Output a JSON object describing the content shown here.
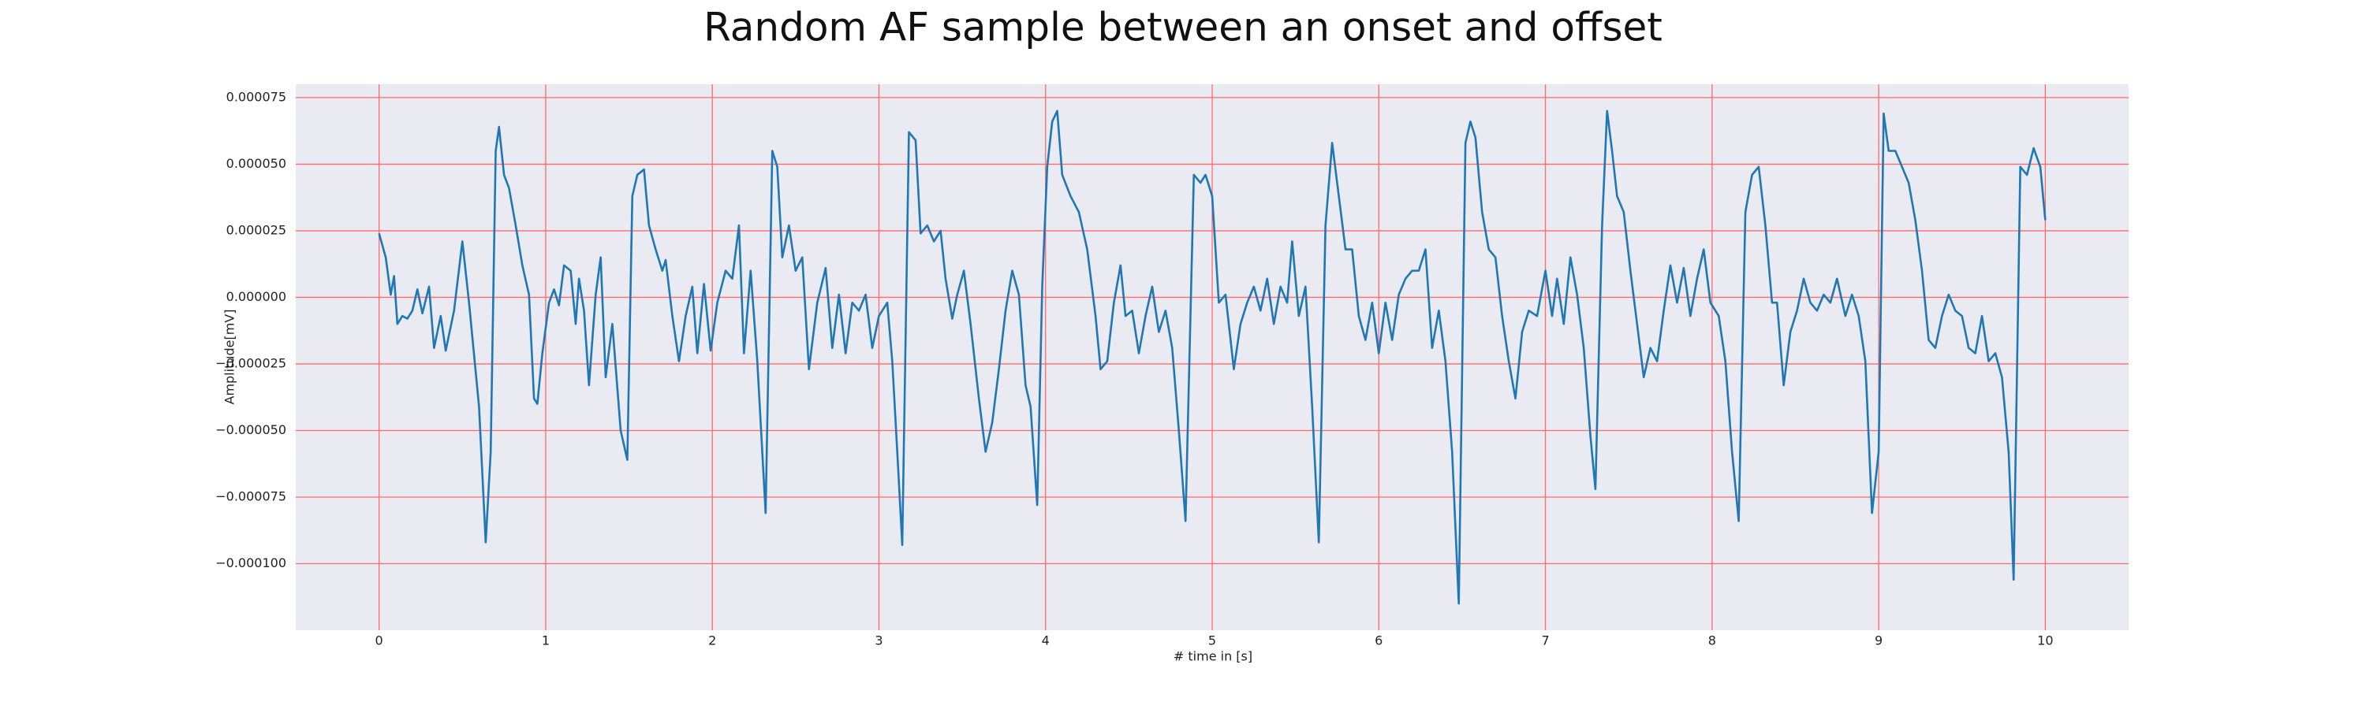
{
  "chart_data": {
    "type": "line",
    "title": "Random AF sample between an onset and offset",
    "x_label": "# time in [s]",
    "y_label": "Amplitude[mV]",
    "color": "#1f77b4",
    "grid": true,
    "grid_color": "#ff6b6b",
    "background": "#eaeaf2",
    "xlim": [
      -0.5,
      10.5
    ],
    "ylim": [
      -0.000125,
      8e-05
    ],
    "xticks": [
      0,
      1,
      2,
      3,
      4,
      5,
      6,
      7,
      8,
      9,
      10
    ],
    "yticks": [
      {
        "value": -0.0001,
        "label": "−0.000100"
      },
      {
        "value": -7.5e-05,
        "label": "−0.000075"
      },
      {
        "value": -5e-05,
        "label": "−0.000050"
      },
      {
        "value": -2.5e-05,
        "label": "−0.000025"
      },
      {
        "value": 0,
        "label": "0.000000"
      },
      {
        "value": 2.5e-05,
        "label": "0.000025"
      },
      {
        "value": 5e-05,
        "label": "0.000050"
      },
      {
        "value": 7.5e-05,
        "label": "0.000075"
      }
    ],
    "x": [
      0,
      0.04,
      0.07,
      0.09,
      0.11,
      0.14,
      0.17,
      0.2,
      0.23,
      0.26,
      0.3,
      0.33,
      0.37,
      0.4,
      0.45,
      0.5,
      0.54,
      0.6,
      0.64,
      0.67,
      0.7,
      0.72,
      0.75,
      0.78,
      0.82,
      0.86,
      0.9,
      0.93,
      0.95,
      0.98,
      1.02,
      1.05,
      1.08,
      1.11,
      1.15,
      1.18,
      1.2,
      1.23,
      1.26,
      1.3,
      1.33,
      1.36,
      1.4,
      1.45,
      1.49,
      1.52,
      1.55,
      1.59,
      1.62,
      1.66,
      1.7,
      1.72,
      1.76,
      1.8,
      1.84,
      1.88,
      1.91,
      1.95,
      1.99,
      2.03,
      2.08,
      2.12,
      2.16,
      2.19,
      2.23,
      2.27,
      2.32,
      2.36,
      2.39,
      2.42,
      2.46,
      2.5,
      2.54,
      2.58,
      2.63,
      2.68,
      2.72,
      2.76,
      2.8,
      2.84,
      2.88,
      2.92,
      2.96,
      3,
      3.05,
      3.08,
      3.11,
      3.14,
      3.18,
      3.22,
      3.25,
      3.29,
      3.33,
      3.37,
      3.4,
      3.44,
      3.47,
      3.51,
      3.55,
      3.6,
      3.64,
      3.68,
      3.72,
      3.76,
      3.8,
      3.84,
      3.88,
      3.91,
      3.95,
      3.98,
      4.01,
      4.04,
      4.07,
      4.1,
      4.15,
      4.2,
      4.25,
      4.3,
      4.33,
      4.37,
      4.41,
      4.45,
      4.48,
      4.52,
      4.56,
      4.6,
      4.64,
      4.68,
      4.72,
      4.76,
      4.8,
      4.84,
      4.89,
      4.93,
      4.96,
      5,
      5.04,
      5.08,
      5.13,
      5.17,
      5.21,
      5.25,
      5.29,
      5.33,
      5.37,
      5.41,
      5.45,
      5.48,
      5.52,
      5.56,
      5.6,
      5.64,
      5.68,
      5.72,
      5.76,
      5.8,
      5.84,
      5.88,
      5.92,
      5.96,
      6,
      6.04,
      6.08,
      6.12,
      6.16,
      6.2,
      6.24,
      6.28,
      6.32,
      6.36,
      6.4,
      6.44,
      6.48,
      6.52,
      6.55,
      6.58,
      6.62,
      6.66,
      6.7,
      6.74,
      6.78,
      6.82,
      6.86,
      6.9,
      6.95,
      7,
      7.04,
      7.07,
      7.11,
      7.15,
      7.19,
      7.23,
      7.27,
      7.3,
      7.34,
      7.37,
      7.4,
      7.43,
      7.47,
      7.51,
      7.55,
      7.59,
      7.63,
      7.67,
      7.71,
      7.75,
      7.79,
      7.83,
      7.87,
      7.91,
      7.95,
      7.99,
      8.04,
      8.08,
      8.12,
      8.16,
      8.2,
      8.24,
      8.28,
      8.32,
      8.36,
      8.39,
      8.43,
      8.47,
      8.51,
      8.55,
      8.59,
      8.63,
      8.67,
      8.71,
      8.75,
      8.8,
      8.84,
      8.88,
      8.92,
      8.96,
      9,
      9.03,
      9.06,
      9.1,
      9.14,
      9.18,
      9.22,
      9.26,
      9.3,
      9.34,
      9.38,
      9.42,
      9.46,
      9.5,
      9.54,
      9.58,
      9.62,
      9.66,
      9.7,
      9.74,
      9.78,
      9.81,
      9.85,
      9.89,
      9.93,
      9.97,
      10
    ],
    "values": [
      2.4e-05,
      1.5e-05,
      1e-06,
      8e-06,
      -1e-05,
      -7e-06,
      -8e-06,
      -5e-06,
      3e-06,
      -6e-06,
      4e-06,
      -1.9e-05,
      -7e-06,
      -2e-05,
      -5e-06,
      2.1e-05,
      -2e-06,
      -4.1e-05,
      -9.2e-05,
      -5.8e-05,
      5.5e-05,
      6.4e-05,
      4.6e-05,
      4.1e-05,
      2.7e-05,
      1.2e-05,
      1e-06,
      -3.8e-05,
      -4e-05,
      -2.1e-05,
      -2e-06,
      3e-06,
      -3e-06,
      1.2e-05,
      1e-05,
      -1e-05,
      7e-06,
      -5e-06,
      -3.3e-05,
      1e-06,
      1.5e-05,
      -3e-05,
      -1e-05,
      -5e-05,
      -6.1e-05,
      3.8e-05,
      4.6e-05,
      4.8e-05,
      2.7e-05,
      1.8e-05,
      1e-05,
      1.4e-05,
      -7e-06,
      -2.4e-05,
      -7e-06,
      4e-06,
      -2.1e-05,
      5e-06,
      -2e-05,
      -2e-06,
      1e-05,
      7e-06,
      2.7e-05,
      -2.1e-05,
      1e-05,
      -2.4e-05,
      -8.1e-05,
      5.5e-05,
      4.9e-05,
      1.5e-05,
      2.7e-05,
      1e-05,
      1.5e-05,
      -2.7e-05,
      -2e-06,
      1.1e-05,
      -1.9e-05,
      1e-06,
      -2.1e-05,
      -2e-06,
      -5e-06,
      1e-06,
      -1.9e-05,
      -7e-06,
      -2e-06,
      -2.4e-05,
      -5.8e-05,
      -9.3e-05,
      6.2e-05,
      5.9e-05,
      2.4e-05,
      2.7e-05,
      2.1e-05,
      2.5e-05,
      7e-06,
      -8e-06,
      1e-06,
      1e-05,
      -1e-05,
      -3.8e-05,
      -5.8e-05,
      -4.7e-05,
      -2.7e-05,
      -5e-06,
      1e-05,
      1e-06,
      -3.3e-05,
      -4.1e-05,
      -7.8e-05,
      4e-06,
      4.9e-05,
      6.6e-05,
      7e-05,
      4.6e-05,
      3.8e-05,
      3.2e-05,
      1.8e-05,
      -7e-06,
      -2.7e-05,
      -2.4e-05,
      -2e-06,
      1.2e-05,
      -7e-06,
      -5e-06,
      -2.1e-05,
      -7e-06,
      4e-06,
      -1.3e-05,
      -5e-06,
      -1.9e-05,
      -5e-05,
      -8.4e-05,
      4.6e-05,
      4.3e-05,
      4.6e-05,
      3.8e-05,
      -2e-06,
      1e-06,
      -2.7e-05,
      -1e-05,
      -2e-06,
      4e-06,
      -5e-06,
      7e-06,
      -1e-05,
      4e-06,
      -2e-06,
      2.1e-05,
      -7e-06,
      4e-06,
      -4.1e-05,
      -9.2e-05,
      2.7e-05,
      5.8e-05,
      3.8e-05,
      1.8e-05,
      1.8e-05,
      -7e-06,
      -1.6e-05,
      -2e-06,
      -2.1e-05,
      -2e-06,
      -1.6e-05,
      1e-06,
      7e-06,
      1e-05,
      1e-05,
      1.8e-05,
      -1.9e-05,
      -5e-06,
      -2.4e-05,
      -5.8e-05,
      -0.000115,
      5.8e-05,
      6.6e-05,
      6e-05,
      3.2e-05,
      1.8e-05,
      1.5e-05,
      -7e-06,
      -2.4e-05,
      -3.8e-05,
      -1.3e-05,
      -5e-06,
      -7e-06,
      1e-05,
      -7e-06,
      7e-06,
      -1e-05,
      1.5e-05,
      1e-06,
      -1.9e-05,
      -5.2e-05,
      -7.2e-05,
      2.7e-05,
      7e-05,
      5.5e-05,
      3.8e-05,
      3.2e-05,
      1e-05,
      -1e-05,
      -3e-05,
      -1.9e-05,
      -2.4e-05,
      -5e-06,
      1.2e-05,
      -2e-06,
      1.1e-05,
      -7e-06,
      7e-06,
      1.8e-05,
      -2e-06,
      -7e-06,
      -2.4e-05,
      -5.8e-05,
      -8.4e-05,
      3.2e-05,
      4.6e-05,
      4.9e-05,
      2.7e-05,
      -2e-06,
      -2e-06,
      -3.3e-05,
      -1.3e-05,
      -5e-06,
      7e-06,
      -2e-06,
      -5e-06,
      1e-06,
      -2e-06,
      7e-06,
      -7e-06,
      1e-06,
      -7e-06,
      -2.4e-05,
      -8.1e-05,
      -5.8e-05,
      6.9e-05,
      5.5e-05,
      5.5e-05,
      4.9e-05,
      4.3e-05,
      2.9e-05,
      1e-05,
      -1.6e-05,
      -1.9e-05,
      -7e-06,
      1e-06,
      -5e-06,
      -7e-06,
      -1.9e-05,
      -2.1e-05,
      -7e-06,
      -2.4e-05,
      -2.1e-05,
      -3e-05,
      -5.8e-05,
      -0.000106,
      4.9e-05,
      4.6e-05,
      5.6e-05,
      4.9e-05,
      2.9e-05
    ]
  }
}
